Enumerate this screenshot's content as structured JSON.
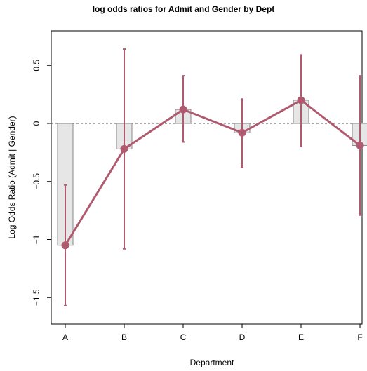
{
  "chart_data": {
    "type": "bar",
    "title": "log odds ratios for Admit and Gender by Dept",
    "xlabel": "Department",
    "ylabel": "Log Odds Ratio (Admit | Gender)",
    "categories": [
      "A",
      "B",
      "C",
      "D",
      "E",
      "F"
    ],
    "series": [
      {
        "values": [
          -1.05,
          -0.22,
          0.12,
          -0.08,
          0.2,
          -0.19
        ],
        "ci_lower": [
          -1.57,
          -1.08,
          -0.16,
          -0.38,
          -0.2,
          -0.79
        ],
        "ci_upper": [
          -0.53,
          0.64,
          0.41,
          0.21,
          0.59,
          0.41
        ]
      }
    ],
    "yticks": [
      -1.5,
      -1,
      -0.5,
      0,
      0.5
    ],
    "ytick_labels": [
      "−1.5",
      "−1",
      "−0.5",
      "0",
      "0.5"
    ],
    "ylim": [
      -1.65,
      0.75
    ],
    "reference_line": 0,
    "colors": {
      "bar_fill": "#e6e6e6",
      "bar_stroke": "#888888",
      "line": "#b05a70",
      "axis": "#000000",
      "reference": "#555555"
    }
  }
}
